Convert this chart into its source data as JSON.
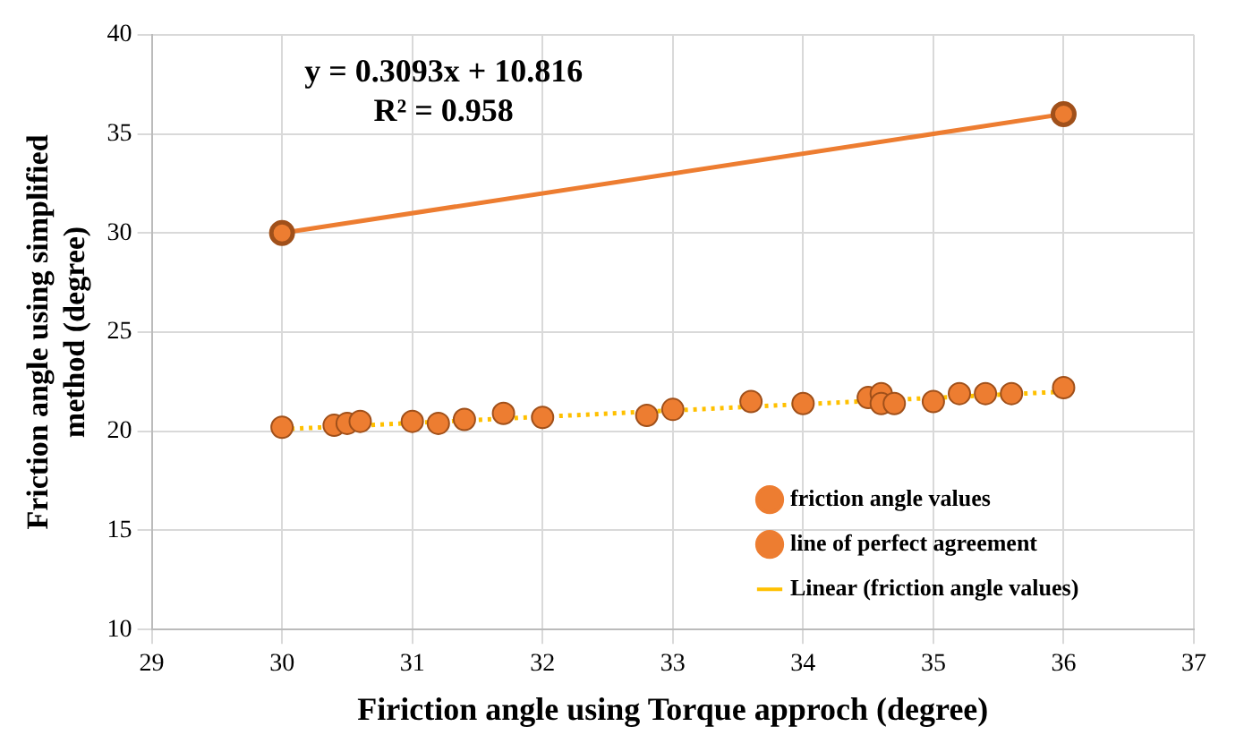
{
  "chart_data": {
    "type": "scatter",
    "xlabel": "Firiction angle using Torque approch (degree)",
    "ylabel": "Friction angle using simplified method (degree)",
    "xlim": [
      29,
      37
    ],
    "xticks": [
      29,
      30,
      31,
      32,
      33,
      34,
      35,
      36,
      37
    ],
    "ylim": [
      10,
      40
    ],
    "yticks": [
      10,
      15,
      20,
      25,
      30,
      35,
      40
    ],
    "grid": true,
    "legend": "bottom right",
    "annotations": [
      "y = 0.3093x + 10.816",
      "R² = 0.958"
    ],
    "series": [
      {
        "name": "friction angle values",
        "marker": "circle",
        "color": "#ed7d31",
        "x": [
          30.0,
          30.4,
          30.5,
          30.6,
          31.0,
          31.2,
          31.4,
          31.7,
          32.0,
          32.8,
          33.0,
          33.6,
          34.0,
          34.5,
          34.6,
          34.6,
          34.7,
          35.0,
          35.2,
          35.4,
          35.6,
          36.0
        ],
        "values": [
          20.2,
          20.3,
          20.4,
          20.5,
          20.5,
          20.4,
          20.6,
          20.9,
          20.7,
          20.8,
          21.1,
          21.5,
          21.4,
          21.7,
          21.9,
          21.4,
          21.4,
          21.5,
          21.9,
          21.9,
          21.9,
          22.2
        ]
      },
      {
        "name": "line of perfect agreement",
        "type": "line",
        "marker": "circle",
        "line_style": "solid",
        "color": "#ed7d31",
        "x": [
          30,
          36
        ],
        "values": [
          30,
          36
        ]
      },
      {
        "name": "Linear (friction angle values)",
        "type": "line",
        "marker": "none",
        "line_style": "dotted",
        "color": "#ffc000",
        "x": [
          30,
          36
        ],
        "values": [
          20.1,
          22.0
        ]
      }
    ]
  }
}
